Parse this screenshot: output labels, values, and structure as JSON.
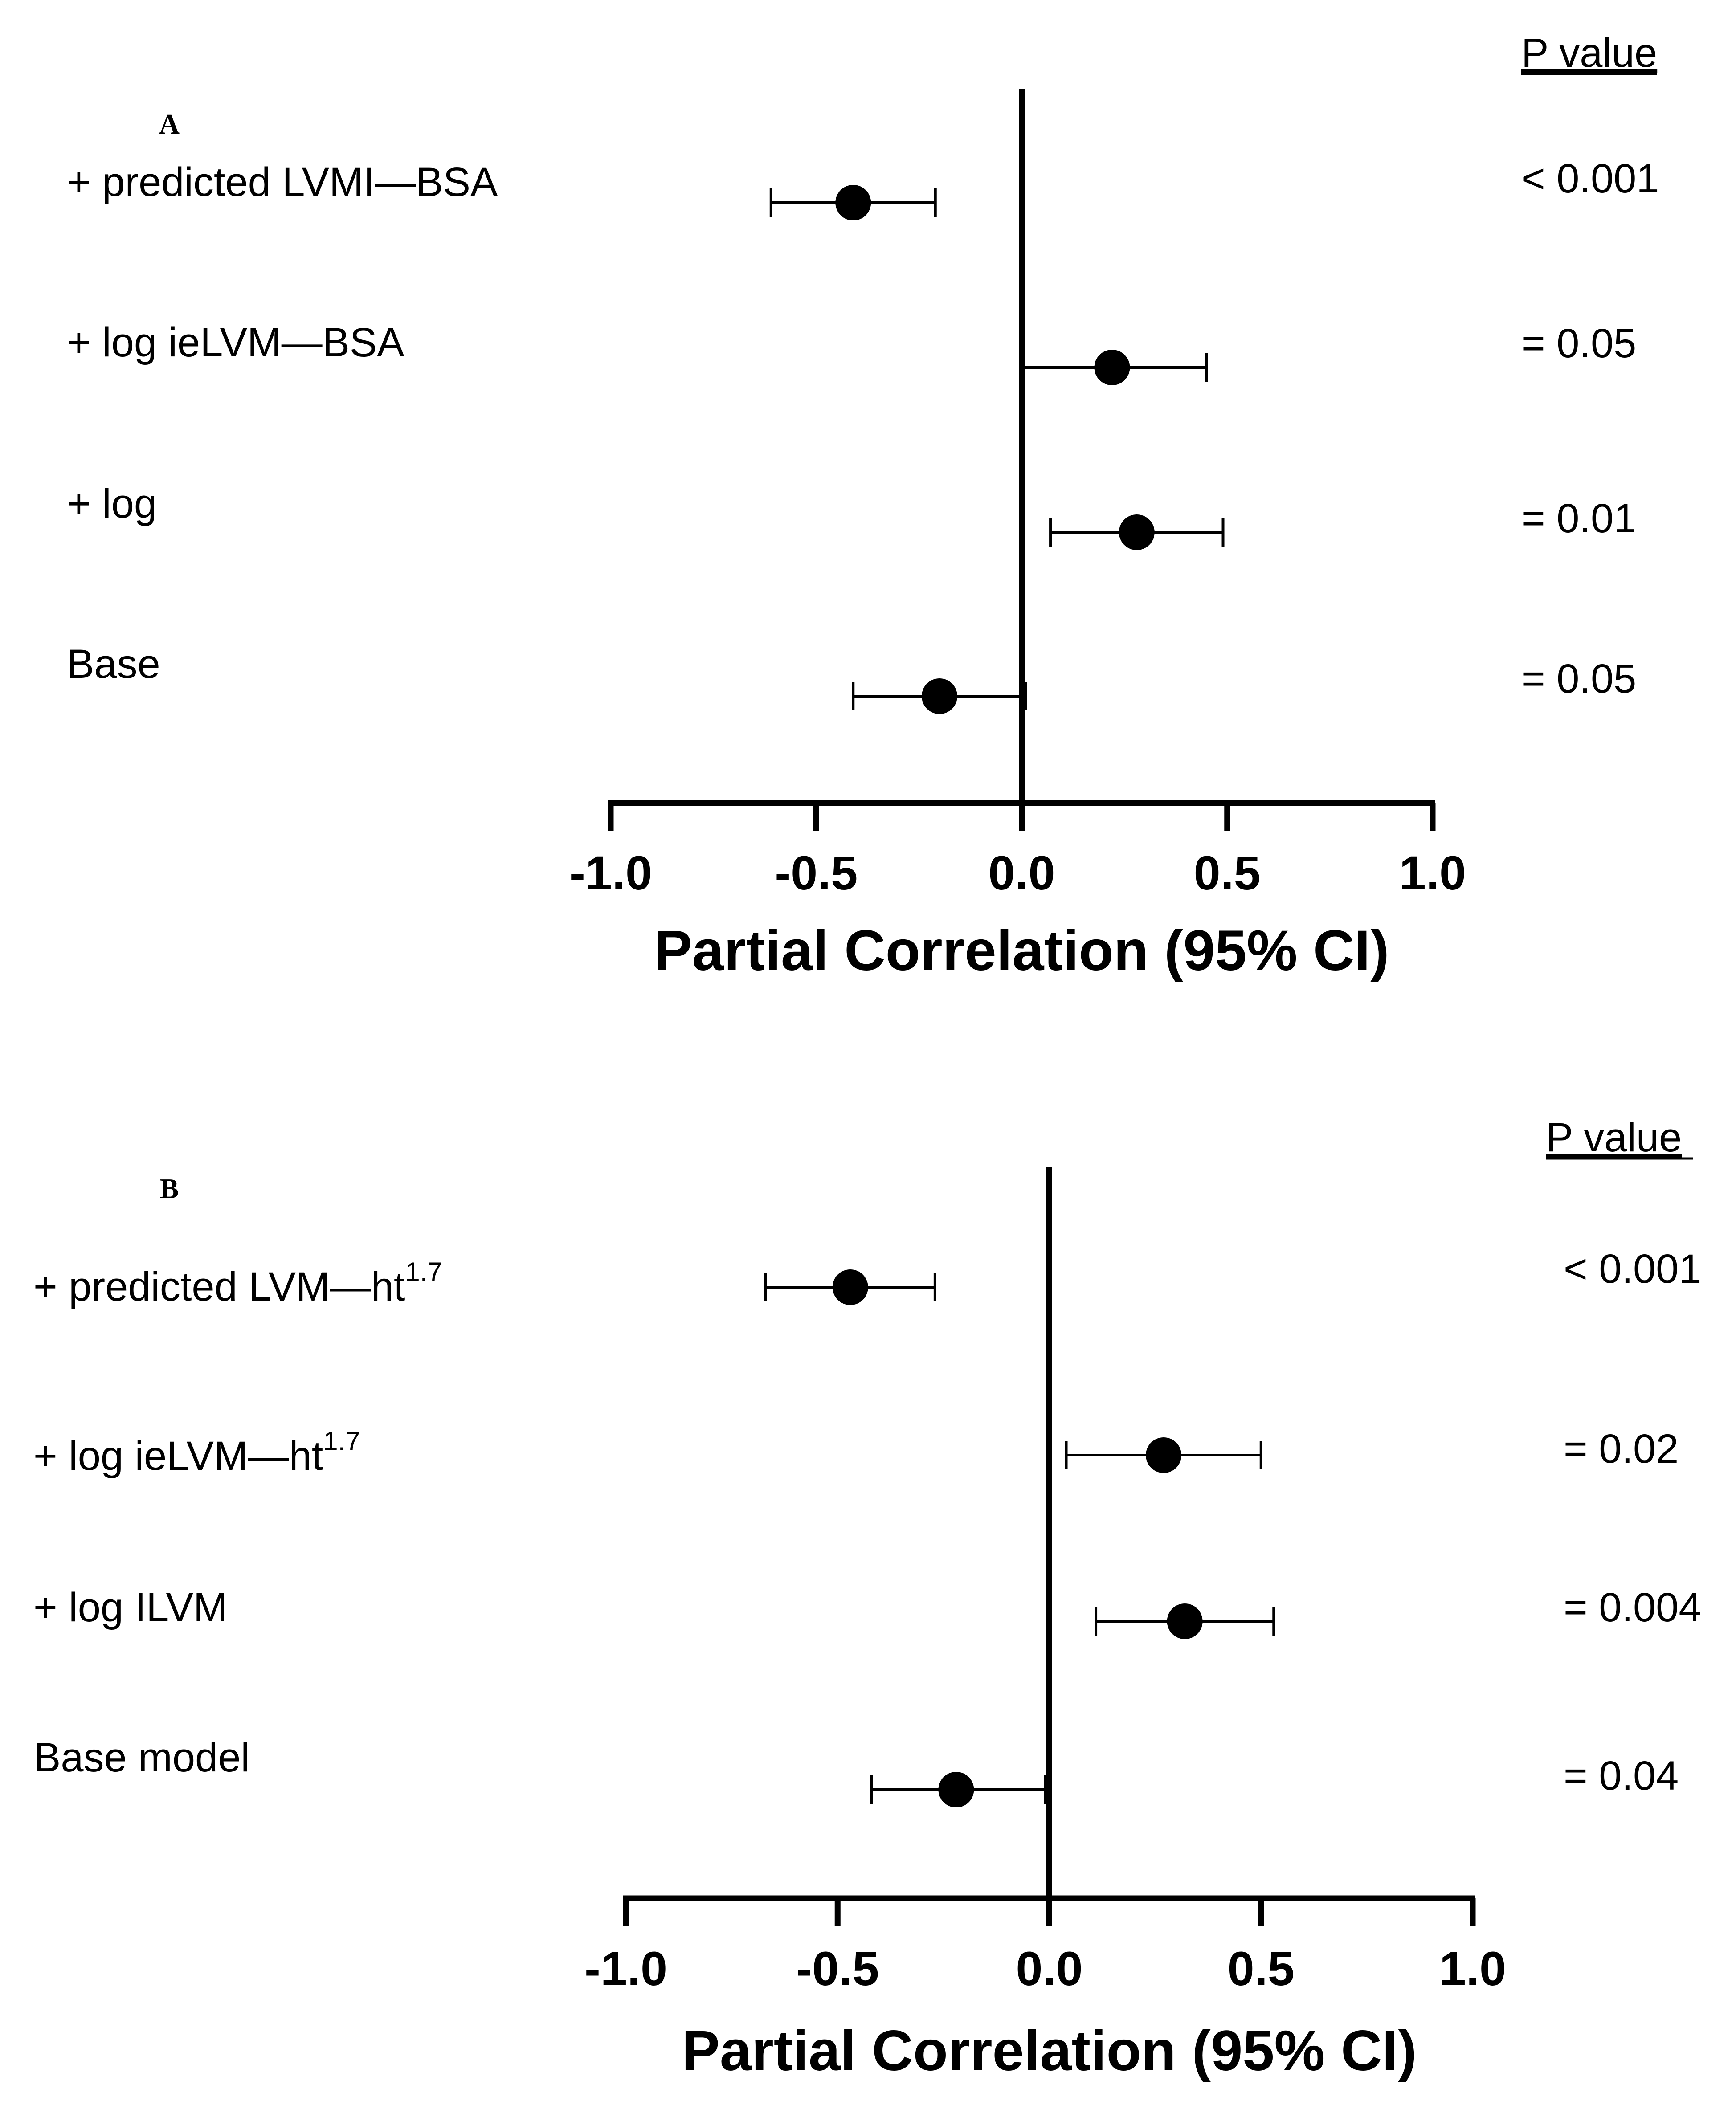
{
  "colors": {
    "ink": "#000000",
    "background": "#ffffff"
  },
  "chart_data": [
    {
      "type": "forest",
      "panel": "A",
      "xlabel": "Partial Correlation (95% CI)",
      "xlim": [
        -1.0,
        1.0
      ],
      "xticks": [
        "-1.0",
        "-0.5",
        "0.0",
        "0.5",
        "1.0"
      ],
      "pvalue_header": "P value",
      "rows": [
        {
          "label": "+ predicted LVMI—BSA",
          "sup": "",
          "estimate": -0.41,
          "lower": -0.61,
          "upper": -0.21,
          "pvalue": "< 0.001"
        },
        {
          "label": "+ log ieLVM—BSA",
          "sup": "",
          "estimate": 0.22,
          "lower": 0.0,
          "upper": 0.45,
          "pvalue": "= 0.05"
        },
        {
          "label": "+ log",
          "sup": "",
          "estimate": 0.28,
          "lower": 0.07,
          "upper": 0.49,
          "pvalue": "= 0.01"
        },
        {
          "label": "Base",
          "sup": "",
          "estimate": -0.2,
          "lower": -0.41,
          "upper": 0.01,
          "pvalue": "= 0.05"
        }
      ]
    },
    {
      "type": "forest",
      "panel": "B",
      "xlabel": "Partial Correlation (95% CI)",
      "xlim": [
        -1.0,
        1.0
      ],
      "xticks": [
        "-1.0",
        "-0.5",
        "0.0",
        "0.5",
        "1.0"
      ],
      "pvalue_header": "P value",
      "rows": [
        {
          "label": "+ predicted LVM—ht",
          "sup": "1.7",
          "estimate": -0.47,
          "lower": -0.67,
          "upper": -0.27,
          "pvalue": "< 0.001"
        },
        {
          "label": "+ log ieLVM—ht",
          "sup": "1.7",
          "estimate": 0.27,
          "lower": 0.04,
          "upper": 0.5,
          "pvalue": "= 0.02"
        },
        {
          "label": "+ log ILVM",
          "sup": "",
          "estimate": 0.32,
          "lower": 0.11,
          "upper": 0.53,
          "pvalue": "= 0.004"
        },
        {
          "label": "Base model",
          "sup": "",
          "estimate": -0.22,
          "lower": -0.42,
          "upper": -0.01,
          "pvalue": "= 0.04"
        }
      ]
    }
  ]
}
